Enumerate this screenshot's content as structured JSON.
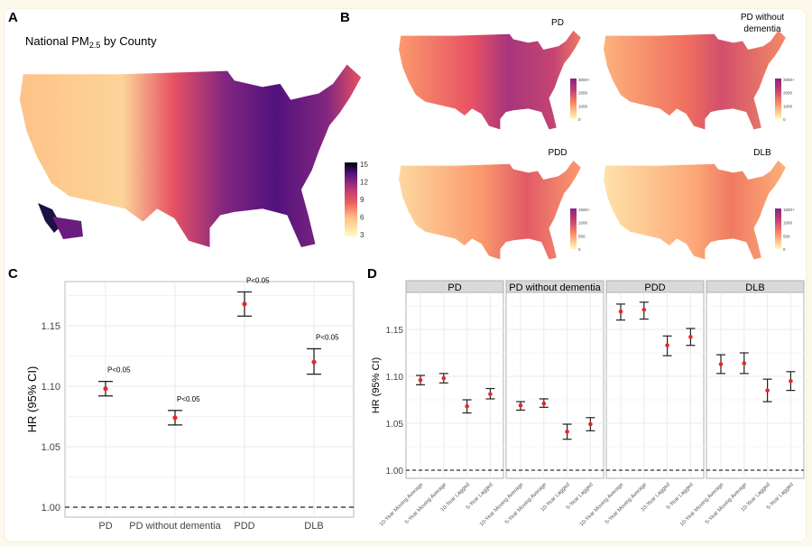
{
  "panel_labels": {
    "a": "A",
    "b": "B",
    "c": "C",
    "d": "D"
  },
  "panel_a": {
    "title_prefix": "National PM",
    "title_sub": "2.5",
    "title_suffix": " by County",
    "legend_ticks": [
      "15",
      "12",
      "9",
      "6",
      "3"
    ]
  },
  "panel_b": {
    "maps": [
      {
        "title_lines": [
          "PD"
        ],
        "legend_ticks": [
          "3000+",
          "2000",
          "1000",
          "0"
        ]
      },
      {
        "title_lines": [
          "PD without",
          "dementia"
        ],
        "legend_ticks": [
          "3000+",
          "2000",
          "1000",
          "0"
        ]
      },
      {
        "title_lines": [
          "PDD"
        ],
        "legend_ticks": [
          "1500+",
          "1000",
          "500",
          "0"
        ]
      },
      {
        "title_lines": [
          "DLB"
        ],
        "legend_ticks": [
          "1500+",
          "1000",
          "500",
          "0"
        ]
      }
    ]
  },
  "colors": {
    "colormap": [
      "#fcfdbf",
      "#fec287",
      "#fb8761",
      "#e75263",
      "#b5367a",
      "#822681",
      "#51127c",
      "#1c1044",
      "#000004"
    ],
    "point": "#e8262b",
    "strip": "#d9d9d9",
    "background": "#fdf9ec"
  },
  "chart_data": [
    {
      "type": "scatter",
      "title": "",
      "xlabel": "",
      "ylabel": "HR (95% CI)",
      "ylim": [
        0.992,
        1.187
      ],
      "yticks": [
        "1.00",
        "1.05",
        "1.10",
        "1.15"
      ],
      "reference_line": 1.0,
      "grid": true,
      "categories": [
        "PD",
        "PD without dementia",
        "PDD",
        "DLB"
      ],
      "values": [
        1.098,
        1.074,
        1.168,
        1.12
      ],
      "ci_low": [
        1.092,
        1.068,
        1.158,
        1.11
      ],
      "ci_high": [
        1.104,
        1.08,
        1.178,
        1.131
      ],
      "annotations": [
        "P<0.05",
        "P<0.05",
        "P<0.05",
        "P<0.05"
      ]
    },
    {
      "type": "scatter",
      "title": "",
      "ylabel": "HR (95% CI)",
      "ylim": [
        0.991,
        1.188
      ],
      "yticks": [
        "1.00",
        "1.05",
        "1.10",
        "1.15"
      ],
      "reference_line": 1.0,
      "grid": true,
      "categories": [
        "10-Year Moving Average",
        "5-Year Moving Average",
        "10-Year Lagged",
        "5-Year Lagged"
      ],
      "facets": [
        {
          "name": "PD",
          "values": [
            1.096,
            1.098,
            1.068,
            1.081
          ],
          "ci_low": [
            1.091,
            1.093,
            1.061,
            1.076
          ],
          "ci_high": [
            1.101,
            1.103,
            1.075,
            1.087
          ]
        },
        {
          "name": "PD without dementia",
          "values": [
            1.069,
            1.071,
            1.041,
            1.049
          ],
          "ci_low": [
            1.064,
            1.067,
            1.033,
            1.042
          ],
          "ci_high": [
            1.073,
            1.076,
            1.049,
            1.056
          ]
        },
        {
          "name": "PDD",
          "values": [
            1.169,
            1.171,
            1.133,
            1.142
          ],
          "ci_low": [
            1.16,
            1.161,
            1.122,
            1.133
          ],
          "ci_high": [
            1.177,
            1.179,
            1.143,
            1.151
          ]
        },
        {
          "name": "DLB",
          "values": [
            1.113,
            1.114,
            1.085,
            1.095
          ],
          "ci_low": [
            1.103,
            1.103,
            1.073,
            1.085
          ],
          "ci_high": [
            1.123,
            1.125,
            1.097,
            1.105
          ]
        }
      ]
    }
  ]
}
